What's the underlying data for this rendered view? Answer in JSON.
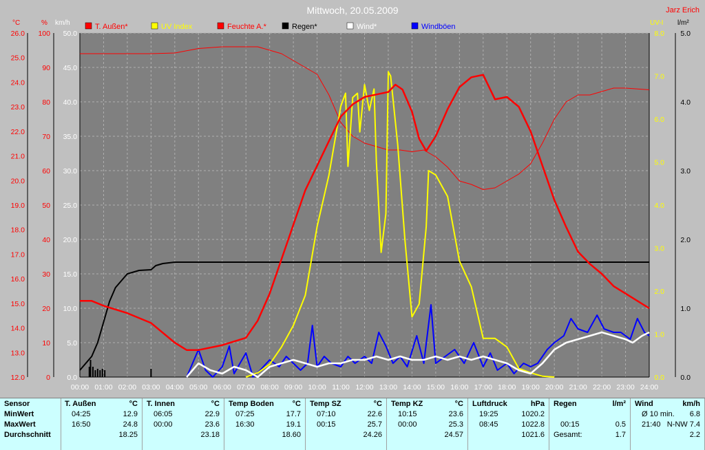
{
  "title": "Mittwoch, 20.05.2009",
  "author": "Jarz Erich",
  "axis_units": {
    "temp": "°C",
    "hum": "%",
    "wind": "km/h",
    "uv": "UV-I",
    "rain": "l/m²"
  },
  "legend": [
    {
      "label": "T. Außen*",
      "color": "#ff0000"
    },
    {
      "label": "UV Index",
      "color": "#ffff00"
    },
    {
      "label": "Feuchte A.*",
      "color": "#ff0000"
    },
    {
      "label": "Regen*",
      "color": "#000000"
    },
    {
      "label": "Wind*",
      "color": "#ffffff"
    },
    {
      "label": "Windböen",
      "color": "#0000ff"
    }
  ],
  "chart_data": {
    "type": "line",
    "x_ticks": [
      "00:00",
      "01:00",
      "02:00",
      "03:00",
      "04:00",
      "05:00",
      "06:00",
      "07:00",
      "08:00",
      "09:00",
      "10:00",
      "11:00",
      "12:00",
      "13:00",
      "14:00",
      "15:00",
      "16:00",
      "17:00",
      "18:00",
      "19:00",
      "20:00",
      "21:00",
      "22:00",
      "23:00",
      "24:00"
    ],
    "temp_ticks": [
      "12.0",
      "13.0",
      "14.0",
      "15.0",
      "16.0",
      "17.0",
      "18.0",
      "19.0",
      "20.0",
      "21.0",
      "22.0",
      "23.0",
      "24.0",
      "25.0",
      "26.0"
    ],
    "hum_ticks": [
      "0",
      "10",
      "20",
      "30",
      "40",
      "50",
      "60",
      "70",
      "80",
      "90",
      "100"
    ],
    "wind_ticks": [
      "0.0",
      "5.0",
      "10.0",
      "15.0",
      "20.0",
      "25.0",
      "30.0",
      "35.0",
      "40.0",
      "45.0",
      "50.0"
    ],
    "uv_ticks": [
      "0.0",
      "1.0",
      "2.0",
      "3.0",
      "4.0",
      "5.0",
      "6.0",
      "7.0",
      "8.0"
    ],
    "rain_ticks": [
      "0.0",
      "1.0",
      "2.0",
      "3.0",
      "4.0",
      "5.0"
    ],
    "xlim": [
      0,
      24
    ],
    "temp_ylim": [
      12,
      26
    ],
    "hum_ylim": [
      0,
      100
    ],
    "wind_ylim": [
      0,
      50
    ],
    "uv_ylim": [
      0,
      8
    ],
    "rain_ylim": [
      0,
      5
    ],
    "grid": true,
    "series": [
      {
        "name": "T. Außen*",
        "axis": "temp",
        "color": "#ff0000",
        "width": 2.5,
        "points": [
          [
            0,
            15.1
          ],
          [
            0.5,
            15.1
          ],
          [
            1,
            14.9
          ],
          [
            2,
            14.6
          ],
          [
            3,
            14.2
          ],
          [
            4,
            13.4
          ],
          [
            4.5,
            13.1
          ],
          [
            5,
            13.1
          ],
          [
            6,
            13.3
          ],
          [
            7,
            13.6
          ],
          [
            7.5,
            14.3
          ],
          [
            8,
            15.4
          ],
          [
            8.5,
            16.8
          ],
          [
            9,
            18.2
          ],
          [
            9.5,
            19.6
          ],
          [
            10,
            20.6
          ],
          [
            10.5,
            21.6
          ],
          [
            11,
            22.6
          ],
          [
            11.5,
            23.1
          ],
          [
            12,
            23.4
          ],
          [
            12.5,
            23.5
          ],
          [
            13,
            23.6
          ],
          [
            13.3,
            23.9
          ],
          [
            13.6,
            23.7
          ],
          [
            14,
            22.8
          ],
          [
            14.3,
            21.7
          ],
          [
            14.6,
            21.2
          ],
          [
            15,
            21.8
          ],
          [
            15.5,
            22.9
          ],
          [
            16,
            23.8
          ],
          [
            16.5,
            24.2
          ],
          [
            17,
            24.3
          ],
          [
            17.5,
            23.3
          ],
          [
            18,
            23.4
          ],
          [
            18.5,
            23.0
          ],
          [
            19,
            22.0
          ],
          [
            19.5,
            20.6
          ],
          [
            20,
            19.2
          ],
          [
            20.5,
            18.1
          ],
          [
            21,
            17.1
          ],
          [
            21.5,
            16.6
          ],
          [
            22,
            16.2
          ],
          [
            22.5,
            15.7
          ],
          [
            23,
            15.4
          ],
          [
            23.5,
            15.1
          ],
          [
            24,
            14.8
          ]
        ]
      },
      {
        "name": "Feuchte A.*",
        "axis": "hum",
        "color": "#ff0000",
        "width": 1,
        "points": [
          [
            0,
            94
          ],
          [
            1,
            94
          ],
          [
            2,
            94
          ],
          [
            3,
            94
          ],
          [
            4,
            94.2
          ],
          [
            5,
            95.5
          ],
          [
            6,
            96
          ],
          [
            7,
            96
          ],
          [
            7.5,
            96
          ],
          [
            8,
            95
          ],
          [
            8.5,
            94
          ],
          [
            9,
            92
          ],
          [
            10,
            88
          ],
          [
            10.5,
            82
          ],
          [
            11,
            74
          ],
          [
            11.5,
            70
          ],
          [
            12,
            68
          ],
          [
            12.5,
            67
          ],
          [
            13,
            66
          ],
          [
            13.5,
            66
          ],
          [
            14,
            65.5
          ],
          [
            14.5,
            66
          ],
          [
            15,
            64
          ],
          [
            15.5,
            61
          ],
          [
            16,
            57
          ],
          [
            16.5,
            56
          ],
          [
            17,
            54.5
          ],
          [
            17.5,
            55
          ],
          [
            18,
            57
          ],
          [
            18.5,
            59
          ],
          [
            19,
            62
          ],
          [
            19.5,
            68
          ],
          [
            20,
            75
          ],
          [
            20.5,
            80
          ],
          [
            21,
            82
          ],
          [
            21.5,
            82
          ],
          [
            22,
            83
          ],
          [
            22.5,
            84
          ],
          [
            23,
            84
          ],
          [
            24,
            83.5
          ]
        ]
      },
      {
        "name": "Regen*",
        "axis": "rain",
        "color": "#000000",
        "width": 2,
        "points": [
          [
            0,
            0.1
          ],
          [
            0.5,
            0.3
          ],
          [
            0.75,
            0.5
          ],
          [
            1,
            0.8
          ],
          [
            1.25,
            1.1
          ],
          [
            1.5,
            1.3
          ],
          [
            2,
            1.5
          ],
          [
            2.5,
            1.55
          ],
          [
            3,
            1.56
          ],
          [
            3.2,
            1.62
          ],
          [
            3.5,
            1.65
          ],
          [
            4,
            1.67
          ],
          [
            24,
            1.67
          ]
        ]
      },
      {
        "name": "UV Index",
        "axis": "uv",
        "color": "#ffff00",
        "width": 2,
        "points": [
          [
            7,
            0
          ],
          [
            7.5,
            0.1
          ],
          [
            8,
            0.3
          ],
          [
            8.5,
            0.7
          ],
          [
            9,
            1.2
          ],
          [
            9.5,
            1.9
          ],
          [
            10,
            3.5
          ],
          [
            10.5,
            4.7
          ],
          [
            11,
            6.3
          ],
          [
            11.2,
            6.6
          ],
          [
            11.3,
            4.9
          ],
          [
            11.5,
            6.5
          ],
          [
            11.7,
            6.6
          ],
          [
            11.8,
            5.7
          ],
          [
            12,
            6.8
          ],
          [
            12.2,
            6.2
          ],
          [
            12.4,
            6.7
          ],
          [
            12.5,
            5.0
          ],
          [
            12.7,
            2.9
          ],
          [
            12.9,
            3.8
          ],
          [
            13,
            7.1
          ],
          [
            13.1,
            7.0
          ],
          [
            13.4,
            5.4
          ],
          [
            13.7,
            3.2
          ],
          [
            14,
            1.4
          ],
          [
            14.3,
            1.7
          ],
          [
            14.6,
            3.5
          ],
          [
            14.7,
            4.8
          ],
          [
            15,
            4.7
          ],
          [
            15.5,
            4.2
          ],
          [
            16,
            2.7
          ],
          [
            16.5,
            2.1
          ],
          [
            17,
            0.9
          ],
          [
            17.5,
            0.9
          ],
          [
            18,
            0.7
          ],
          [
            18.5,
            0.2
          ],
          [
            19,
            0.1
          ],
          [
            19.5,
            0.02
          ],
          [
            20,
            0
          ]
        ]
      },
      {
        "name": "Windböen",
        "axis": "wind",
        "color": "#0000ff",
        "width": 2,
        "points": [
          [
            4.5,
            0
          ],
          [
            5,
            4
          ],
          [
            5.3,
            1
          ],
          [
            5.6,
            0
          ],
          [
            6,
            1.5
          ],
          [
            6.3,
            4.5
          ],
          [
            6.5,
            0.5
          ],
          [
            7,
            3.5
          ],
          [
            7.3,
            0
          ],
          [
            7.6,
            1
          ],
          [
            8,
            2.5
          ],
          [
            8.4,
            1.5
          ],
          [
            8.7,
            3
          ],
          [
            9,
            2
          ],
          [
            9.3,
            1
          ],
          [
            9.6,
            2
          ],
          [
            9.8,
            7.5
          ],
          [
            10,
            1.5
          ],
          [
            10.3,
            3
          ],
          [
            10.6,
            2
          ],
          [
            11,
            1.5
          ],
          [
            11.3,
            3
          ],
          [
            11.6,
            2
          ],
          [
            12,
            3
          ],
          [
            12.3,
            2
          ],
          [
            12.6,
            6.5
          ],
          [
            12.9,
            4.5
          ],
          [
            13.2,
            2
          ],
          [
            13.5,
            3
          ],
          [
            13.8,
            1.5
          ],
          [
            14.2,
            6
          ],
          [
            14.5,
            2
          ],
          [
            14.8,
            10.5
          ],
          [
            15,
            2
          ],
          [
            15.4,
            3
          ],
          [
            15.8,
            4
          ],
          [
            16.2,
            2
          ],
          [
            16.6,
            5
          ],
          [
            17,
            1.5
          ],
          [
            17.3,
            3.5
          ],
          [
            17.6,
            1
          ],
          [
            18,
            2
          ],
          [
            18.3,
            0.5
          ],
          [
            18.7,
            2
          ],
          [
            19,
            1.5
          ],
          [
            19.3,
            2
          ],
          [
            19.7,
            4
          ],
          [
            20,
            5
          ],
          [
            20.4,
            6
          ],
          [
            20.7,
            8.5
          ],
          [
            21,
            7
          ],
          [
            21.4,
            6.5
          ],
          [
            21.8,
            9
          ],
          [
            22.1,
            7
          ],
          [
            22.5,
            6.5
          ],
          [
            22.8,
            6.5
          ],
          [
            23.2,
            5.5
          ],
          [
            23.5,
            8.5
          ],
          [
            23.8,
            6.5
          ],
          [
            24,
            6
          ]
        ]
      },
      {
        "name": "Wind*",
        "axis": "wind",
        "color": "#ffffff",
        "width": 2.5,
        "points": [
          [
            4.5,
            0
          ],
          [
            5,
            2
          ],
          [
            5.5,
            1
          ],
          [
            6,
            0.5
          ],
          [
            6.5,
            1.5
          ],
          [
            7,
            1
          ],
          [
            7.5,
            0
          ],
          [
            8,
            1.5
          ],
          [
            8.5,
            2
          ],
          [
            9,
            2.5
          ],
          [
            9.5,
            2
          ],
          [
            10,
            1.5
          ],
          [
            10.5,
            2
          ],
          [
            11,
            2
          ],
          [
            11.5,
            2.5
          ],
          [
            12,
            2.5
          ],
          [
            12.5,
            3
          ],
          [
            13,
            2.5
          ],
          [
            13.5,
            3
          ],
          [
            14,
            2.5
          ],
          [
            14.5,
            2.5
          ],
          [
            15,
            3
          ],
          [
            15.5,
            2.5
          ],
          [
            16,
            3
          ],
          [
            16.5,
            2.5
          ],
          [
            17,
            3
          ],
          [
            17.5,
            2.5
          ],
          [
            18,
            2
          ],
          [
            18.5,
            1
          ],
          [
            19,
            0.5
          ],
          [
            19.5,
            2
          ],
          [
            20,
            4
          ],
          [
            20.5,
            5
          ],
          [
            21,
            5.5
          ],
          [
            21.5,
            6
          ],
          [
            22,
            6.5
          ],
          [
            22.5,
            6
          ],
          [
            23,
            5.5
          ],
          [
            23.3,
            5
          ],
          [
            23.7,
            6
          ],
          [
            24,
            6.5
          ]
        ]
      }
    ],
    "rain_bars": [
      [
        0.4,
        0.15
      ],
      [
        0.45,
        0.25
      ],
      [
        0.55,
        0.15
      ],
      [
        0.65,
        0.1
      ],
      [
        0.75,
        0.12
      ],
      [
        0.85,
        0.1
      ],
      [
        0.95,
        0.12
      ],
      [
        1.05,
        0.1
      ],
      [
        3.0,
        0.12
      ]
    ]
  },
  "table": {
    "row_labels": [
      "Sensor",
      "MinWert",
      "MaxWert",
      "Durchschnitt"
    ],
    "columns": [
      {
        "title": "T. Außen",
        "unit": "°C",
        "min_time": "04:25",
        "min_val": "12.9",
        "max_time": "16:50",
        "max_val": "24.8",
        "avg": "18.25"
      },
      {
        "title": "T. Innen",
        "unit": "°C",
        "min_time": "06:05",
        "min_val": "22.9",
        "max_time": "00:00",
        "max_val": "23.6",
        "avg": "23.18"
      },
      {
        "title": "Temp Boden",
        "unit": "°C",
        "min_time": "07:25",
        "min_val": "17.7",
        "max_time": "16:30",
        "max_val": "19.1",
        "avg": "18.60"
      },
      {
        "title": "Temp SZ",
        "unit": "°C",
        "min_time": "07:10",
        "min_val": "22.6",
        "max_time": "00:15",
        "max_val": "25.7",
        "avg": "24.26"
      },
      {
        "title": "Temp KZ",
        "unit": "°C",
        "min_time": "10:15",
        "min_val": "23.6",
        "max_time": "00:00",
        "max_val": "25.3",
        "avg": "24.57"
      },
      {
        "title": "Luftdruck",
        "unit": "hPa",
        "min_time": "19:25",
        "min_val": "1020.2",
        "max_time": "08:45",
        "max_val": "1022.8",
        "avg": "1021.6"
      },
      {
        "title": "Regen",
        "unit": "l/m²",
        "min_time": "",
        "min_val": "",
        "max_time": "00:15",
        "max_val": "0.5",
        "avg_label": "Gesamt:",
        "avg": "1.7"
      },
      {
        "title": "Wind",
        "unit": "km/h",
        "min_time": "Ø 10 min.",
        "min_val": "6.8",
        "max_time": "21:40",
        "max_val": "N-NW 7.4",
        "avg": "2.2"
      }
    ]
  }
}
